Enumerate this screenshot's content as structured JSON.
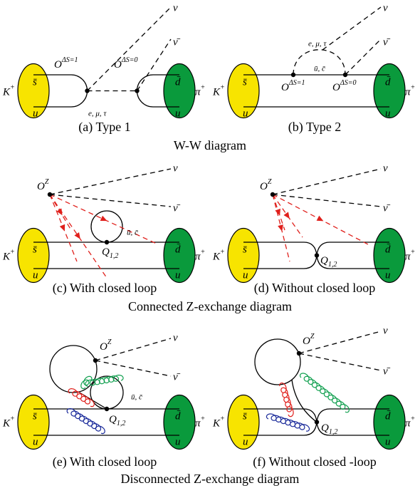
{
  "panels": [
    {
      "caption": "(a) Type 1",
      "hadron_left": {
        "base": "K",
        "sup": "+"
      },
      "left_quarks": [
        "s̄",
        "u"
      ],
      "right_quarks": [
        "d̄",
        "u"
      ],
      "hadron_right": {
        "base": "π",
        "sup": "+"
      },
      "nu": "ν",
      "nubar": "ν̄",
      "vertex_labels": [
        {
          "base": "O",
          "sup": "ΔS=1"
        },
        {
          "base": "O",
          "sup": "ΔS=0"
        }
      ],
      "lepton_label": "e, μ, τ"
    },
    {
      "caption": "(b) Type 2",
      "hadron_left": {
        "base": "K",
        "sup": "+"
      },
      "left_quarks": [
        "s̄",
        "u"
      ],
      "right_quarks": [
        "d̄",
        "u"
      ],
      "hadron_right": {
        "base": "π",
        "sup": "+"
      },
      "nu": "ν",
      "nubar": "ν̄",
      "vertex_labels": [
        {
          "base": "O",
          "sup": "ΔS=1"
        },
        {
          "base": "O",
          "sup": "ΔS=0"
        }
      ],
      "lepton_label": "e, μ, τ",
      "loop_label": "ū, c̄"
    },
    {
      "caption": "(c) With closed loop",
      "hadron_left": {
        "base": "K",
        "sup": "+"
      },
      "left_quarks": [
        "s̄",
        "u"
      ],
      "right_quarks": [
        "d̄",
        "u"
      ],
      "hadron_right": {
        "base": "π",
        "sup": "+"
      },
      "nu": "ν",
      "nubar": "ν̄",
      "z_label": {
        "base": "O",
        "sup": "Z"
      },
      "q_label": {
        "base": "Q",
        "sub": "1,2"
      },
      "loop_label": "ū, c̄"
    },
    {
      "caption": "(d) Without closed loop",
      "hadron_left": {
        "base": "K",
        "sup": "+"
      },
      "left_quarks": [
        "s̄",
        "u"
      ],
      "right_quarks": [
        "d̄",
        "u"
      ],
      "hadron_right": {
        "base": "π",
        "sup": "+"
      },
      "nu": "ν",
      "nubar": "ν̄",
      "z_label": {
        "base": "O",
        "sup": "Z"
      },
      "q_label": {
        "base": "Q",
        "sub": "1,2"
      }
    },
    {
      "caption": "(e) With closed loop",
      "hadron_left": {
        "base": "K",
        "sup": "+"
      },
      "left_quarks": [
        "s̄",
        "u"
      ],
      "right_quarks": [
        "d̄",
        "u"
      ],
      "hadron_right": {
        "base": "π",
        "sup": "+"
      },
      "nu": "ν",
      "nubar": "ν̄",
      "z_label": {
        "base": "O",
        "sup": "Z"
      },
      "q_label": {
        "base": "Q",
        "sub": "1,2"
      },
      "loop_label": "ū, c̄"
    },
    {
      "caption": "(f) Without closed -loop",
      "hadron_left": {
        "base": "K",
        "sup": "+"
      },
      "left_quarks": [
        "s̄",
        "u"
      ],
      "right_quarks": [
        "d̄",
        "u"
      ],
      "hadron_right": {
        "base": "π",
        "sup": "+"
      },
      "nu": "ν",
      "nubar": "ν̄",
      "z_label": {
        "base": "O",
        "sup": "Z"
      },
      "q_label": {
        "base": "Q",
        "sub": "1,2"
      }
    }
  ],
  "row_captions": [
    "W-W diagram",
    "Connected Z-exchange diagram",
    "Disconnected Z-exchange diagram"
  ]
}
